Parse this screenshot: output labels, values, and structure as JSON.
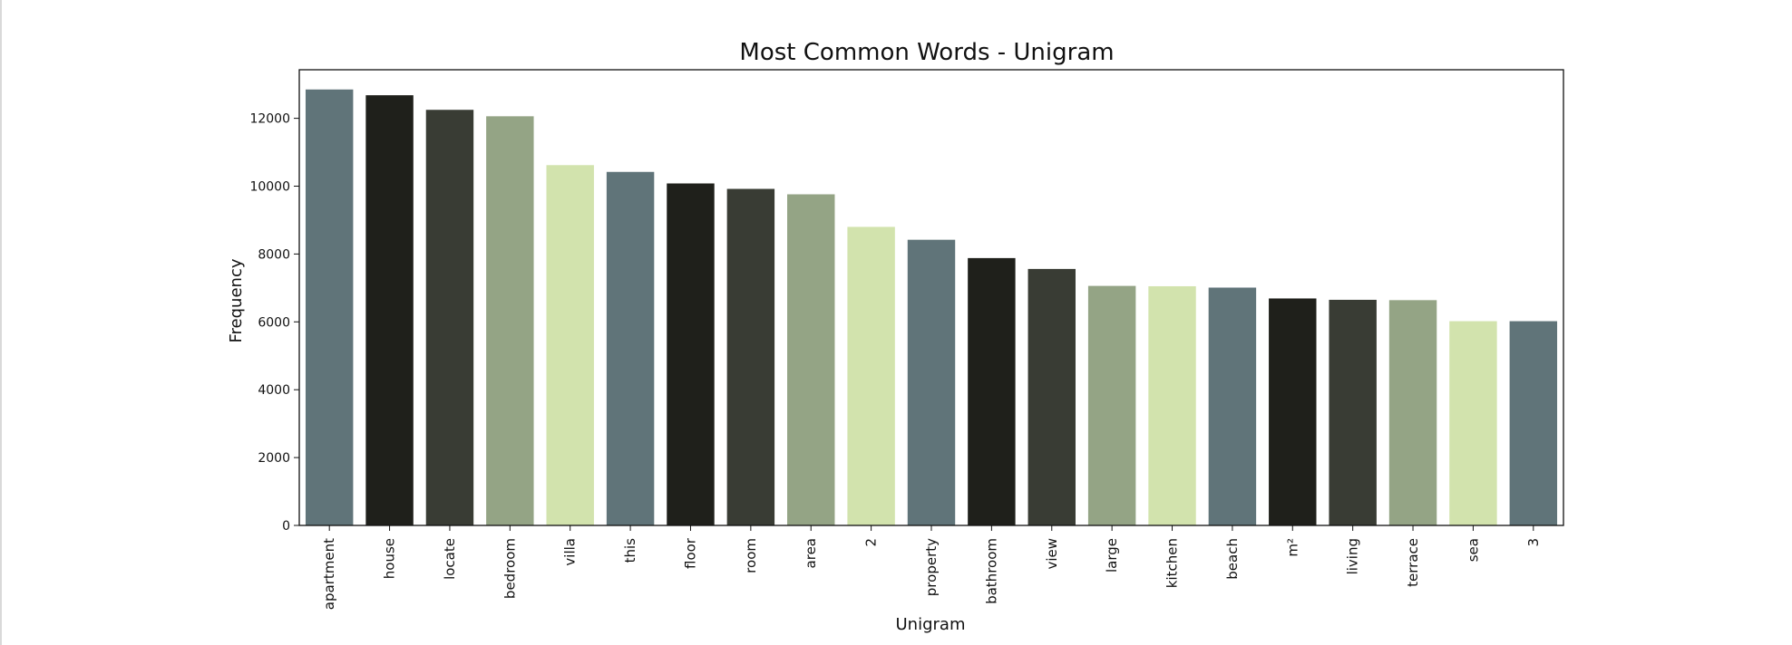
{
  "chart_data": {
    "type": "bar",
    "title": "Most Common Words - Unigram",
    "xlabel": "Unigram",
    "ylabel": "Frequency",
    "ylim": [
      0,
      13200
    ],
    "yticks": [
      0,
      2000,
      4000,
      6000,
      8000,
      10000,
      12000
    ],
    "grid": false,
    "categories": [
      "apartment",
      "house",
      "locate",
      "bedroom",
      "villa",
      "this",
      "floor",
      "room",
      "area",
      "2",
      "property",
      "bathroom",
      "view",
      "large",
      "kitchen",
      "beach",
      "m²",
      "living",
      "terrace",
      "sea",
      "3"
    ],
    "values": [
      12850,
      12680,
      12250,
      12060,
      10620,
      10420,
      10080,
      9920,
      9760,
      8800,
      8420,
      7880,
      7560,
      7060,
      7050,
      7010,
      6690,
      6650,
      6640,
      6020,
      6020
    ],
    "colors": [
      "#607479",
      "#1f201b",
      "#393c34",
      "#94a485",
      "#d2e3ad",
      "#607479",
      "#1f201b",
      "#393c34",
      "#94a485",
      "#d2e3ad",
      "#607479",
      "#1f201b",
      "#393c34",
      "#94a485",
      "#d2e3ad",
      "#607479",
      "#1f201b",
      "#393c34",
      "#94a485",
      "#d2e3ad",
      "#607479"
    ]
  }
}
